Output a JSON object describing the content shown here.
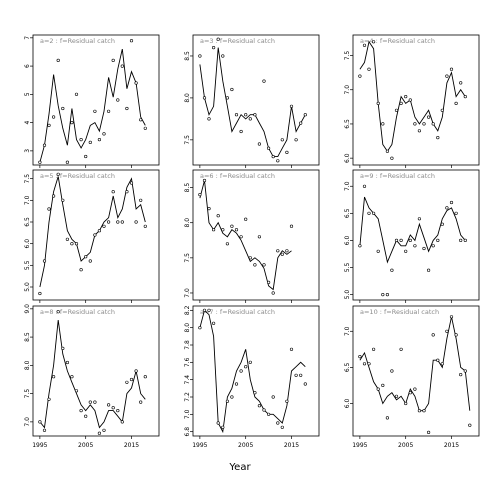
{
  "chart_data": {
    "type": "scatter",
    "xlabel": "Year",
    "x_ticks": [
      1995,
      2005,
      2015
    ],
    "xlim": [
      1993.5,
      2021
    ],
    "years": [
      1995,
      1996,
      1997,
      1998,
      1999,
      2000,
      2001,
      2002,
      2003,
      2004,
      2005,
      2006,
      2007,
      2008,
      2009,
      2010,
      2011,
      2012,
      2013,
      2014,
      2015,
      2016,
      2017,
      2018,
      2019,
      2020
    ],
    "panels": [
      {
        "title": "a=2 : f=Residual catch",
        "ylim": [
          2.5,
          7.1
        ],
        "y_ticks": [
          3,
          4,
          5,
          6,
          7
        ],
        "points": [
          2.6,
          3.2,
          3.9,
          4.2,
          6.2,
          4.5,
          2.6,
          4.0,
          5.0,
          3.4,
          2.8,
          3.3,
          4.4,
          3.4,
          3.6,
          4.4,
          6.2,
          4.8,
          6.0,
          4.5,
          6.9,
          5.4,
          4.1,
          3.8
        ],
        "fit": [
          2.6,
          3.2,
          4.3,
          5.7,
          4.6,
          3.8,
          3.2,
          4.5,
          3.4,
          3.1,
          3.4,
          3.9,
          4.0,
          3.7,
          4.4,
          5.6,
          4.9,
          5.9,
          6.6,
          5.2,
          5.8,
          5.4,
          4.2,
          3.9
        ]
      },
      {
        "title": "a=3 : f=Residual catch",
        "ylim": [
          7.2,
          8.75
        ],
        "y_ticks": [
          7.5,
          8.0,
          8.5
        ],
        "points": [
          8.5,
          8.0,
          7.75,
          8.6,
          8.7,
          8.5,
          8.0,
          8.1,
          7.8,
          7.6,
          7.8,
          7.75,
          7.8,
          7.45,
          8.2,
          7.4,
          7.3,
          7.25,
          7.5,
          7.35,
          7.9,
          7.5,
          7.7,
          7.8
        ],
        "fit": [
          8.4,
          8.0,
          7.8,
          7.9,
          8.6,
          8.2,
          7.9,
          7.6,
          7.7,
          7.8,
          7.75,
          7.8,
          7.8,
          7.7,
          7.6,
          7.4,
          7.3,
          7.3,
          7.4,
          7.5,
          7.9,
          7.6,
          7.7,
          7.8
        ]
      },
      {
        "title": "a=4 : f=Residual catch",
        "ylim": [
          5.9,
          7.8
        ],
        "y_ticks": [
          6.0,
          6.5,
          7.0,
          7.5
        ],
        "points": [
          7.2,
          7.65,
          7.3,
          7.7,
          6.8,
          6.5,
          6.1,
          6.0,
          6.7,
          6.8,
          6.9,
          6.85,
          6.5,
          6.4,
          6.5,
          6.6,
          6.5,
          6.3,
          6.7,
          7.2,
          7.3,
          6.8,
          7.1,
          6.9
        ],
        "fit": [
          7.3,
          7.4,
          7.7,
          7.6,
          6.8,
          6.2,
          6.1,
          6.2,
          6.6,
          6.9,
          6.8,
          6.85,
          6.6,
          6.5,
          6.6,
          6.7,
          6.5,
          6.4,
          6.6,
          7.1,
          7.25,
          6.9,
          7.0,
          6.9
        ]
      },
      {
        "title": "a=5 : f=Residual catch",
        "ylim": [
          4.7,
          7.7
        ],
        "y_ticks": [
          5.0,
          5.5,
          6.0,
          6.5,
          7.0,
          7.5
        ],
        "points": [
          4.85,
          5.6,
          6.8,
          7.1,
          7.6,
          7.0,
          6.1,
          6.0,
          6.0,
          5.4,
          5.7,
          5.6,
          6.2,
          6.3,
          6.4,
          6.5,
          7.2,
          6.5,
          6.5,
          7.2,
          7.4,
          6.5,
          7.0,
          6.4
        ],
        "fit": [
          5.0,
          5.5,
          6.5,
          7.2,
          7.55,
          6.9,
          6.3,
          6.1,
          6.0,
          5.6,
          5.7,
          5.8,
          6.2,
          6.3,
          6.5,
          6.6,
          7.1,
          6.6,
          6.8,
          7.3,
          7.5,
          6.8,
          6.9,
          6.5
        ]
      },
      {
        "title": "a=6 : f=Residual catch",
        "ylim": [
          6.9,
          8.75
        ],
        "y_ticks": [
          7.0,
          7.5,
          8.0,
          8.5
        ],
        "points": [
          8.4,
          8.6,
          8.2,
          7.9,
          8.1,
          7.9,
          7.7,
          7.95,
          7.9,
          7.8,
          8.05,
          7.5,
          7.4,
          7.8,
          7.4,
          7.15,
          7.0,
          7.6,
          7.55,
          7.6,
          7.95
        ],
        "fit": [
          8.35,
          8.6,
          8.0,
          7.9,
          8.0,
          7.85,
          7.8,
          7.9,
          7.85,
          7.75,
          7.6,
          7.45,
          7.5,
          7.45,
          7.35,
          7.1,
          7.05,
          7.5,
          7.6,
          7.55,
          7.6
        ]
      },
      {
        "title": "a=9 : f=Residual catch",
        "ylim": [
          4.9,
          7.3
        ],
        "y_ticks": [
          5.0,
          5.5,
          6.0,
          6.5,
          7.0
        ],
        "points": [
          5.9,
          7.0,
          6.5,
          6.5,
          5.8,
          5.0,
          5.0,
          5.45,
          6.0,
          6.0,
          5.8,
          6.0,
          5.9,
          6.4,
          5.85,
          5.45,
          5.9,
          6.0,
          6.3,
          6.6,
          6.7,
          6.5,
          6.0,
          6.0
        ],
        "fit": [
          5.9,
          6.8,
          6.6,
          6.5,
          6.4,
          6.0,
          5.6,
          5.8,
          6.0,
          5.9,
          5.9,
          6.1,
          6.0,
          6.3,
          6.05,
          5.8,
          6.0,
          6.1,
          6.4,
          6.55,
          6.6,
          6.4,
          6.1,
          6.0
        ]
      },
      {
        "title": "a=8 : f=Residual catch",
        "ylim": [
          6.75,
          9.05
        ],
        "y_ticks": [
          7.0,
          7.5,
          8.0,
          8.5,
          9.0
        ],
        "points": [
          7.0,
          6.85,
          7.4,
          7.8,
          8.95,
          8.3,
          8.05,
          7.8,
          7.55,
          7.2,
          7.1,
          7.35,
          7.35,
          6.8,
          6.85,
          7.3,
          7.25,
          7.2,
          7.0,
          7.7,
          7.75,
          7.9,
          7.35,
          7.8
        ],
        "fit": [
          7.0,
          6.9,
          7.5,
          8.0,
          8.8,
          8.2,
          7.9,
          7.7,
          7.5,
          7.3,
          7.2,
          7.3,
          7.2,
          6.9,
          7.0,
          7.2,
          7.2,
          7.1,
          7.0,
          7.5,
          7.6,
          7.9,
          7.5,
          7.4
        ]
      },
      {
        "title": "a=7 : f=Residual catch",
        "ylim": [
          6.75,
          8.25
        ],
        "y_ticks": [
          6.8,
          7.0,
          7.2,
          7.4,
          7.6,
          7.8,
          8.0,
          8.2
        ],
        "points": [
          8.0,
          8.2,
          8.2,
          8.05,
          6.9,
          6.85,
          7.15,
          7.2,
          7.35,
          7.5,
          7.55,
          7.6,
          7.25,
          7.1,
          7.05,
          7.0,
          7.2,
          6.9,
          6.85,
          7.15,
          7.75,
          7.45,
          7.45,
          7.35
        ],
        "fit": [
          8.0,
          8.2,
          8.15,
          7.9,
          6.9,
          6.8,
          7.2,
          7.3,
          7.5,
          7.6,
          7.75,
          7.4,
          7.2,
          7.15,
          7.05,
          7.0,
          7.0,
          6.95,
          6.9,
          7.1,
          7.5,
          7.55,
          7.6,
          7.55
        ]
      },
      {
        "title": "a=10 : f=Residual catch",
        "ylim": [
          5.55,
          7.35
        ],
        "y_ticks": [
          6.0,
          6.5,
          7.0
        ],
        "points": [
          6.65,
          6.55,
          6.55,
          6.75,
          6.2,
          6.25,
          5.8,
          6.45,
          6.1,
          6.75,
          6.0,
          6.15,
          6.2,
          5.9,
          5.9,
          5.6,
          6.95,
          6.6,
          6.55,
          7.0,
          7.2,
          6.95,
          6.4,
          6.45,
          5.7
        ],
        "fit": [
          6.6,
          6.7,
          6.5,
          6.3,
          6.2,
          6.0,
          6.1,
          6.15,
          6.05,
          6.1,
          6.0,
          6.2,
          6.1,
          5.9,
          5.9,
          6.0,
          6.6,
          6.6,
          6.5,
          6.9,
          7.2,
          6.9,
          6.5,
          6.45,
          5.9
        ]
      }
    ]
  }
}
